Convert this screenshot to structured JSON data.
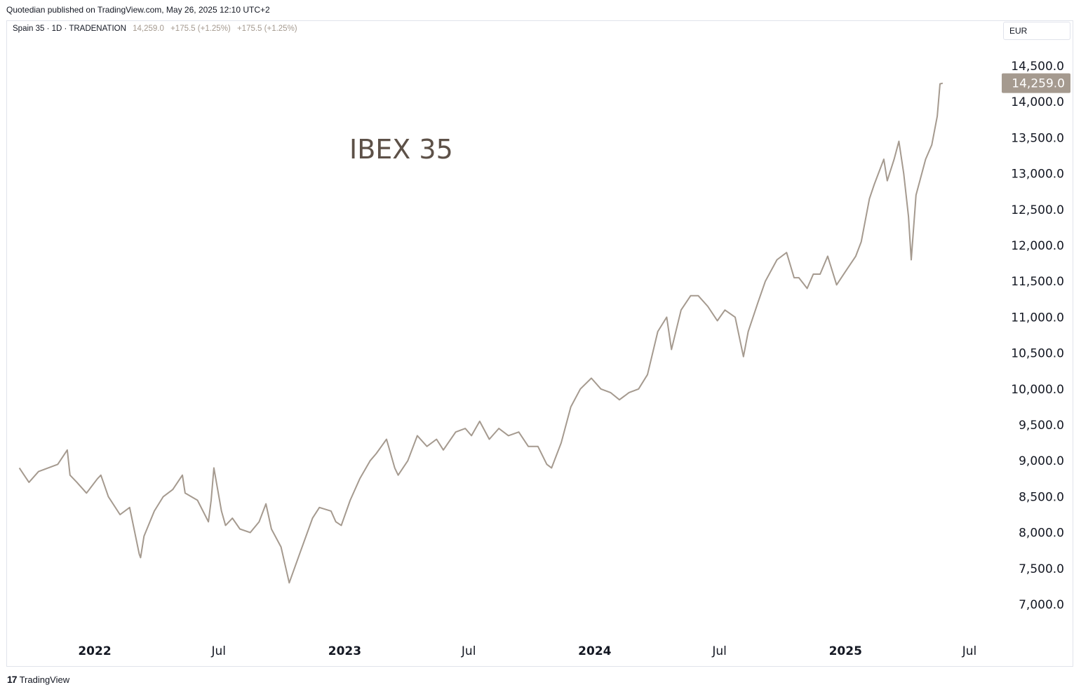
{
  "published": "Quotedian published on TradingView.com, May 26, 2025 12:10 UTC+2",
  "legend": {
    "symbol": "Spain 35 · 1D · TRADENATION",
    "last": "14,259.0",
    "change1": "+175.5 (+1.25%)",
    "change2": "+175.5 (+1.25%)"
  },
  "currency": "EUR",
  "footer": {
    "logo": "17",
    "brand": "TradingView"
  },
  "colors": {
    "line": "#a59a8f",
    "price_tag": "#a59a8f",
    "title": "#5d5148"
  },
  "chart_data": {
    "type": "line",
    "title": "IBEX 35",
    "ylim": [
      6700,
      14800
    ],
    "y_ticks": [
      14500,
      14000,
      13500,
      13000,
      12500,
      12000,
      11500,
      11000,
      10500,
      10000,
      9500,
      9000,
      8500,
      8000,
      7500,
      7000
    ],
    "y_tick_labels": [
      "14,500.0",
      "14,000.0",
      "13,500.0",
      "13,000.0",
      "12,500.0",
      "12,000.0",
      "11,500.0",
      "11,000.0",
      "10,500.0",
      "10,000.0",
      "9,500.0",
      "9,000.0",
      "8,500.0",
      "8,000.0",
      "7,500.0",
      "7,000.0"
    ],
    "x_ticks": [
      {
        "date": "2022-01-01",
        "label": "2022",
        "bold": true
      },
      {
        "date": "2022-07-01",
        "label": "Jul",
        "bold": false
      },
      {
        "date": "2023-01-01",
        "label": "2023",
        "bold": true
      },
      {
        "date": "2023-07-01",
        "label": "Jul",
        "bold": false
      },
      {
        "date": "2024-01-01",
        "label": "2024",
        "bold": true
      },
      {
        "date": "2024-07-01",
        "label": "Jul",
        "bold": false
      },
      {
        "date": "2025-01-01",
        "label": "2025",
        "bold": true
      },
      {
        "date": "2025-07-01",
        "label": "Jul",
        "bold": false
      }
    ],
    "last_price": {
      "value": 14259,
      "label": "14,259.0"
    },
    "series": [
      {
        "x": [
          "2021-09-13",
          "2021-09-20",
          "2021-09-27",
          "2021-10-11",
          "2021-10-25",
          "2021-11-08",
          "2021-11-22",
          "2021-11-26",
          "2021-12-06",
          "2021-12-20",
          "2022-01-05",
          "2022-01-10",
          "2022-01-21",
          "2022-02-07",
          "2022-02-21",
          "2022-03-07",
          "2022-03-09",
          "2022-03-14",
          "2022-03-29",
          "2022-04-11",
          "2022-04-25",
          "2022-05-09",
          "2022-05-13",
          "2022-05-31",
          "2022-06-16",
          "2022-06-20",
          "2022-06-24",
          "2022-07-05",
          "2022-07-11",
          "2022-07-21",
          "2022-08-01",
          "2022-08-16",
          "2022-08-29",
          "2022-09-08",
          "2022-09-16",
          "2022-09-30",
          "2022-10-12",
          "2022-10-27",
          "2022-11-15",
          "2022-11-25",
          "2022-12-12",
          "2022-12-19",
          "2022-12-27",
          "2023-01-09",
          "2023-01-23",
          "2023-02-07",
          "2023-02-16",
          "2023-03-03",
          "2023-03-15",
          "2023-03-20",
          "2023-04-03",
          "2023-04-17",
          "2023-05-01",
          "2023-05-15",
          "2023-05-25",
          "2023-06-12",
          "2023-06-26",
          "2023-07-05",
          "2023-07-17",
          "2023-07-31",
          "2023-08-14",
          "2023-08-28",
          "2023-09-12",
          "2023-09-26",
          "2023-10-10",
          "2023-10-23",
          "2023-10-30",
          "2023-11-13",
          "2023-11-27",
          "2023-12-11",
          "2023-12-27",
          "2024-01-10",
          "2024-01-24",
          "2024-02-06",
          "2024-02-20",
          "2024-03-05",
          "2024-03-18",
          "2024-04-02",
          "2024-04-15",
          "2024-04-22",
          "2024-05-06",
          "2024-05-20",
          "2024-05-31",
          "2024-06-14",
          "2024-06-28",
          "2024-07-09",
          "2024-07-24",
          "2024-08-05",
          "2024-08-12",
          "2024-08-26",
          "2024-09-06",
          "2024-09-23",
          "2024-10-07",
          "2024-10-18",
          "2024-10-25",
          "2024-11-06",
          "2024-11-15",
          "2024-11-25",
          "2024-12-06",
          "2024-12-19",
          "2025-01-02",
          "2025-01-16",
          "2025-01-24",
          "2025-02-05",
          "2025-02-12",
          "2025-02-26",
          "2025-03-03",
          "2025-03-13",
          "2025-03-20",
          "2025-03-27",
          "2025-04-03",
          "2025-04-07",
          "2025-04-14",
          "2025-04-28",
          "2025-05-07",
          "2025-05-15",
          "2025-05-19",
          "2025-05-23"
        ],
        "y": [
          8900,
          8800,
          8700,
          8850,
          8900,
          8950,
          9150,
          8800,
          8700,
          8550,
          8750,
          8800,
          8500,
          8250,
          8350,
          7700,
          7650,
          7950,
          8300,
          8500,
          8600,
          8800,
          8550,
          8450,
          8150,
          8450,
          8900,
          8300,
          8100,
          8200,
          8050,
          8000,
          8150,
          8400,
          8050,
          7800,
          7300,
          7700,
          8200,
          8350,
          8300,
          8150,
          8100,
          8450,
          8750,
          9000,
          9100,
          9300,
          8900,
          8800,
          9000,
          9350,
          9200,
          9300,
          9150,
          9400,
          9450,
          9350,
          9550,
          9300,
          9450,
          9350,
          9400,
          9200,
          9200,
          8950,
          8900,
          9250,
          9750,
          10000,
          10150,
          10000,
          9950,
          9850,
          9950,
          10000,
          10200,
          10800,
          11000,
          10550,
          11100,
          11300,
          11300,
          11150,
          10950,
          11100,
          11000,
          10450,
          10800,
          11200,
          11500,
          11800,
          11900,
          11550,
          11550,
          11400,
          11600,
          11600,
          11850,
          11450,
          11650,
          11850,
          12050,
          12650,
          12850,
          13200,
          12900,
          13200,
          13450,
          13000,
          12400,
          11800,
          12700,
          13200,
          13400,
          13800,
          14250,
          14259
        ]
      }
    ]
  }
}
